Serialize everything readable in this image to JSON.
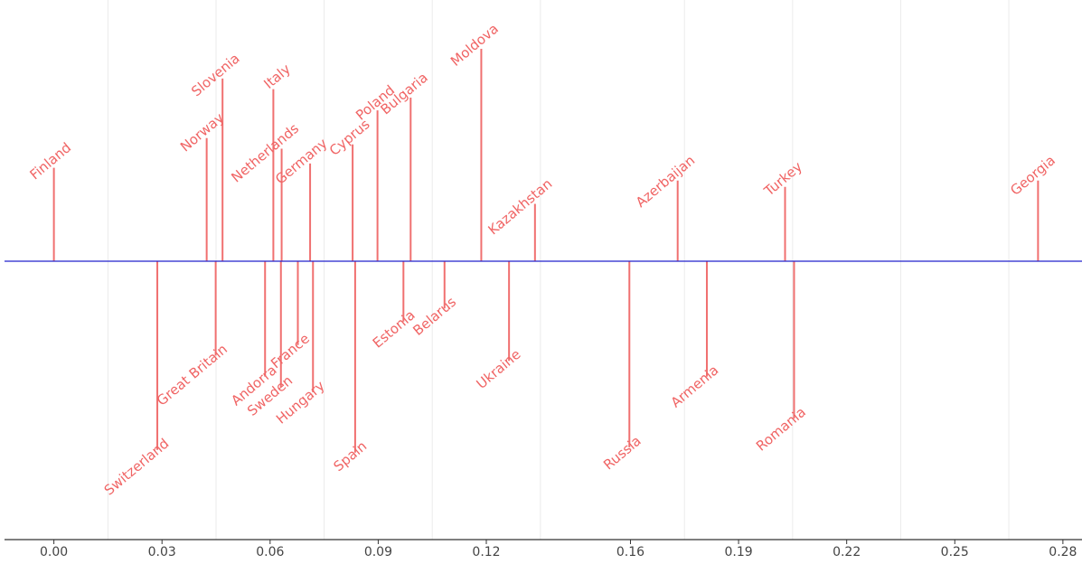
{
  "chart_data": {
    "type": "timeline-stem",
    "title": "",
    "xlabel": "",
    "ylabel": "",
    "xlim": [
      -0.0137,
      0.2853
    ],
    "x_ticks": [
      0,
      0.03,
      0.06,
      0.09,
      0.12,
      0.16,
      0.19,
      0.22,
      0.25,
      0.28
    ],
    "x_tick_labels": [
      "0.00",
      "0.03",
      "0.06",
      "0.09",
      "0.12",
      "0.16",
      "0.19",
      "0.22",
      "0.25",
      "0.28"
    ],
    "grid": "vertical",
    "colors": {
      "stem": "#f07070",
      "label": "#f06464",
      "baseline": "#2222cc",
      "grid": "#ebebeb",
      "axis": "#333333"
    },
    "points": [
      {
        "label": "Finland",
        "x": 0.0,
        "side": "up",
        "level": 0.44
      },
      {
        "label": "Switzerland",
        "x": 0.0287,
        "side": "down",
        "level": 0.72
      },
      {
        "label": "Norway",
        "x": 0.0424,
        "side": "up",
        "level": 0.58
      },
      {
        "label": "Great Britain",
        "x": 0.0449,
        "side": "down",
        "level": 0.36
      },
      {
        "label": "Slovenia",
        "x": 0.0468,
        "side": "up",
        "level": 0.86
      },
      {
        "label": "Andorra",
        "x": 0.0586,
        "side": "down",
        "level": 0.44
      },
      {
        "label": "Italy",
        "x": 0.0609,
        "side": "up",
        "level": 0.81
      },
      {
        "label": "Sweden",
        "x": 0.063,
        "side": "down",
        "level": 0.48
      },
      {
        "label": "Netherlands",
        "x": 0.0632,
        "side": "up",
        "level": 0.53
      },
      {
        "label": "France",
        "x": 0.0677,
        "side": "down",
        "level": 0.32
      },
      {
        "label": "Germany",
        "x": 0.0711,
        "side": "up",
        "level": 0.46
      },
      {
        "label": "Hungary",
        "x": 0.0719,
        "side": "down",
        "level": 0.5
      },
      {
        "label": "Cyprus",
        "x": 0.0829,
        "side": "up",
        "level": 0.55
      },
      {
        "label": "Spain",
        "x": 0.0836,
        "side": "down",
        "level": 0.73
      },
      {
        "label": "Poland",
        "x": 0.0898,
        "side": "up",
        "level": 0.71
      },
      {
        "label": "Estonia",
        "x": 0.097,
        "side": "down",
        "level": 0.23
      },
      {
        "label": "Bulgaria",
        "x": 0.099,
        "side": "up",
        "level": 0.77
      },
      {
        "label": "Belarus",
        "x": 0.1084,
        "side": "down",
        "level": 0.18
      },
      {
        "label": "Moldova",
        "x": 0.1186,
        "side": "up",
        "level": 1.0
      },
      {
        "label": "Ukraine",
        "x": 0.1263,
        "side": "down",
        "level": 0.38
      },
      {
        "label": "Kazakhstan",
        "x": 0.1335,
        "side": "up",
        "level": 0.27
      },
      {
        "label": "Russia",
        "x": 0.1597,
        "side": "down",
        "level": 0.71
      },
      {
        "label": "Azerbaijan",
        "x": 0.1731,
        "side": "up",
        "level": 0.38
      },
      {
        "label": "Armenia",
        "x": 0.1812,
        "side": "down",
        "level": 0.44
      },
      {
        "label": "Turkey",
        "x": 0.2029,
        "side": "up",
        "level": 0.35
      },
      {
        "label": "Romania",
        "x": 0.2054,
        "side": "down",
        "level": 0.6
      },
      {
        "label": "Georgia",
        "x": 0.2731,
        "side": "up",
        "level": 0.38
      }
    ]
  }
}
